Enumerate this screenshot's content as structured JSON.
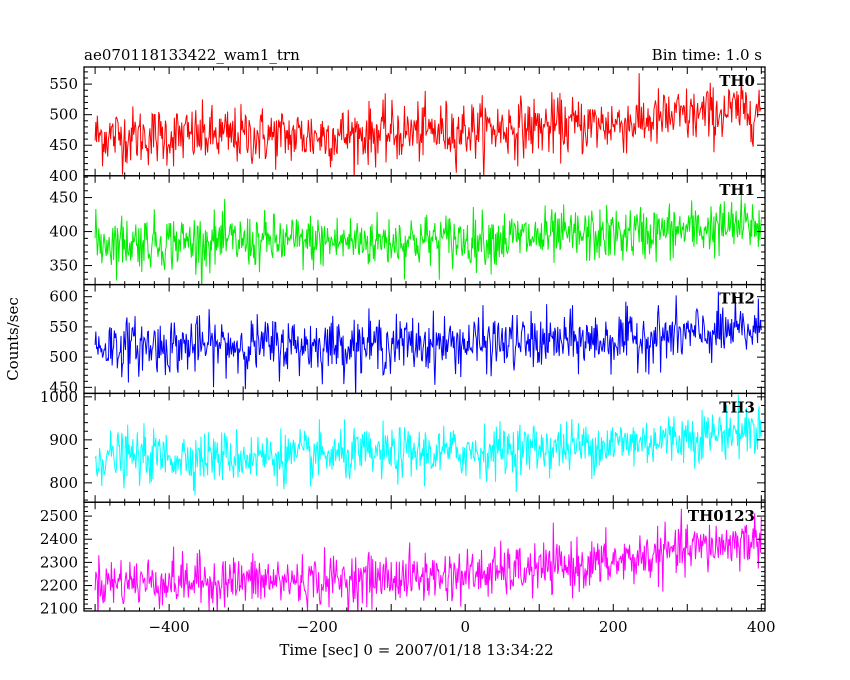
{
  "header": {
    "title": "ae070118133422_wam1_trn",
    "bin_time": "Bin time: 1.0 s"
  },
  "chart_data": {
    "type": "line",
    "xlabel": "Time [sec] 0 = 2007/01/18 13:34:22",
    "ylabel": "Counts/sec",
    "xlim": [
      -515,
      405
    ],
    "x_ticks": [
      -400,
      -200,
      0,
      200,
      400
    ],
    "x_tick_labels": [
      "−400",
      "−200",
      "0",
      "200",
      "400"
    ],
    "x_start": -500,
    "x_end": 400,
    "bin_time_s": 1.0,
    "panels": [
      {
        "name": "TH0",
        "color": "#ff0000",
        "ylim": [
          400,
          578
        ],
        "y_ticks": [
          400,
          450,
          500,
          550
        ],
        "trend": {
          "x": [
            -500,
            -200,
            0,
            200,
            400
          ],
          "y": [
            465,
            465,
            475,
            485,
            510
          ]
        },
        "noise_sd": 24
      },
      {
        "name": "TH1",
        "color": "#00ee00",
        "ylim": [
          322,
          482
        ],
        "y_ticks": [
          350,
          400,
          450
        ],
        "trend": {
          "x": [
            -500,
            -200,
            0,
            200,
            400
          ],
          "y": [
            385,
            385,
            388,
            395,
            410
          ]
        },
        "noise_sd": 20
      },
      {
        "name": "TH2",
        "color": "#0000ff",
        "ylim": [
          440,
          620
        ],
        "y_ticks": [
          450,
          500,
          550,
          600
        ],
        "trend": {
          "x": [
            -500,
            -200,
            0,
            200,
            400
          ],
          "y": [
            518,
            520,
            522,
            528,
            545
          ]
        },
        "noise_sd": 23
      },
      {
        "name": "TH3",
        "color": "#00ffff",
        "ylim": [
          755,
          1008
        ],
        "y_ticks": [
          800,
          900,
          1000
        ],
        "trend": {
          "x": [
            -500,
            -200,
            0,
            200,
            400
          ],
          "y": [
            860,
            862,
            872,
            890,
            925
          ]
        },
        "noise_sd": 30
      },
      {
        "name": "TH0123",
        "color": "#ff00ff",
        "ylim": [
          2090,
          2560
        ],
        "y_ticks": [
          2100,
          2200,
          2300,
          2400,
          2500
        ],
        "trend": {
          "x": [
            -500,
            -300,
            -200,
            0,
            100,
            200,
            300,
            400
          ],
          "y": [
            2215,
            2220,
            2220,
            2245,
            2270,
            2300,
            2355,
            2400
          ]
        },
        "noise_sd": 55
      }
    ]
  }
}
